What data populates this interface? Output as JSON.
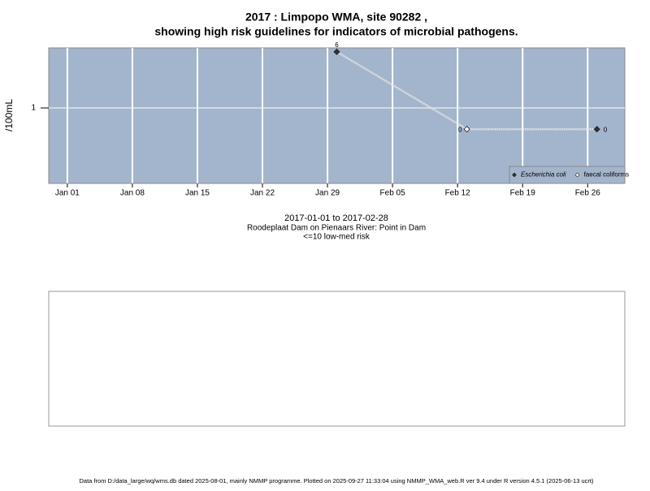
{
  "chart_data": {
    "type": "line",
    "title": "2017 : Limpopo WMA, site 90282 ,",
    "subtitle": "showing high risk guidelines for indicators of microbial pathogens.",
    "y_label": "/100mL",
    "xlim": [
      "2016-12-30",
      "2017-03-02"
    ],
    "xticks": [
      {
        "value": "2017-01-01",
        "label": "Jan 01"
      },
      {
        "value": "2017-01-08",
        "label": "Jan 08"
      },
      {
        "value": "2017-01-15",
        "label": "Jan 15"
      },
      {
        "value": "2017-01-22",
        "label": "Jan 22"
      },
      {
        "value": "2017-01-29",
        "label": "Jan 29"
      },
      {
        "value": "2017-02-05",
        "label": "Feb 05"
      },
      {
        "value": "2017-02-12",
        "label": "Feb 12"
      },
      {
        "value": "2017-02-19",
        "label": "Feb 19"
      },
      {
        "value": "2017-02-26",
        "label": "Feb 26"
      }
    ],
    "ylim": [
      0.09,
      6.8
    ],
    "yticks": [
      1
    ],
    "log_y": true,
    "grid": true,
    "legend": "bottom-right",
    "series": [
      {
        "name": "Escherichia coli",
        "color": "#333333",
        "x": [
          "2017-01-30",
          "2017-02-27"
        ],
        "values": [
          6,
          0
        ]
      },
      {
        "name": "faecal coliforms",
        "color": "#ffffff",
        "x": [
          "2017-02-13"
        ],
        "values": [
          0
        ]
      }
    ],
    "notes": [
      "2017-01-01 to 2017-02-28",
      "Roodeplaat Dam on Pienaars River: Point in Dam",
      "<=10 low-med risk"
    ],
    "footer": "Data from D:/data_large/wq/wms.db dated 2025-08-01, mainly NMMP programme. Plotted on 2025-09-27 11:33:04 using NMMP_WMA_web.R ver 9.4 under R version 4.5.1 (2025-06-13 ucrt)"
  }
}
